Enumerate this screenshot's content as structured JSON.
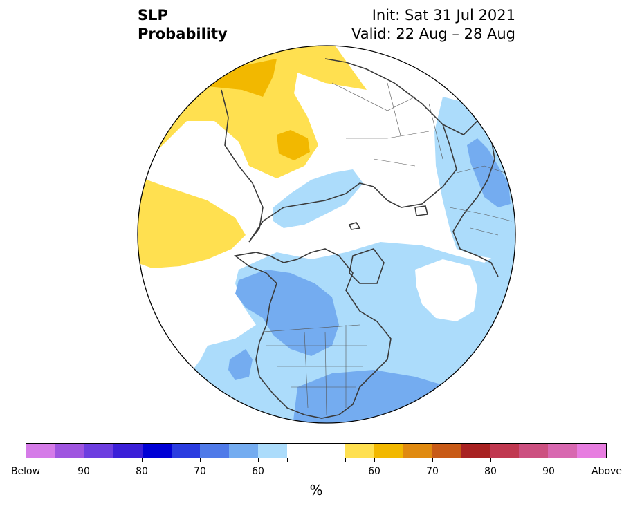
{
  "header": {
    "title_line1": "SLP",
    "title_line2": "Probability",
    "init": "Init: Sat 31 Jul 2021",
    "valid": "Valid: 22 Aug – 28 Aug"
  },
  "colorbar": {
    "colors": [
      "#d57be8",
      "#9f55e0",
      "#6d3ee0",
      "#3b1fd8",
      "#0000d5",
      "#2a3ce0",
      "#4f7ae8",
      "#74acf0",
      "#acdcfb",
      "#ffffff",
      "#ffffff",
      "#ffe050",
      "#f2b800",
      "#e08a10",
      "#c85a16",
      "#a82222",
      "#c03850",
      "#cc5080",
      "#d868b0",
      "#e77de0"
    ],
    "tick_labels": [
      "Below",
      "90",
      "80",
      "70",
      "60",
      "",
      "",
      "60",
      "70",
      "80",
      "90",
      "Above"
    ],
    "unit": "%"
  },
  "colors": {
    "light_blue": "#acdcfb",
    "mid_blue": "#74acf0",
    "blue_dark": "#4f7ae8",
    "light_yellow": "#ffe050",
    "orange_yellow": "#f2b800"
  }
}
